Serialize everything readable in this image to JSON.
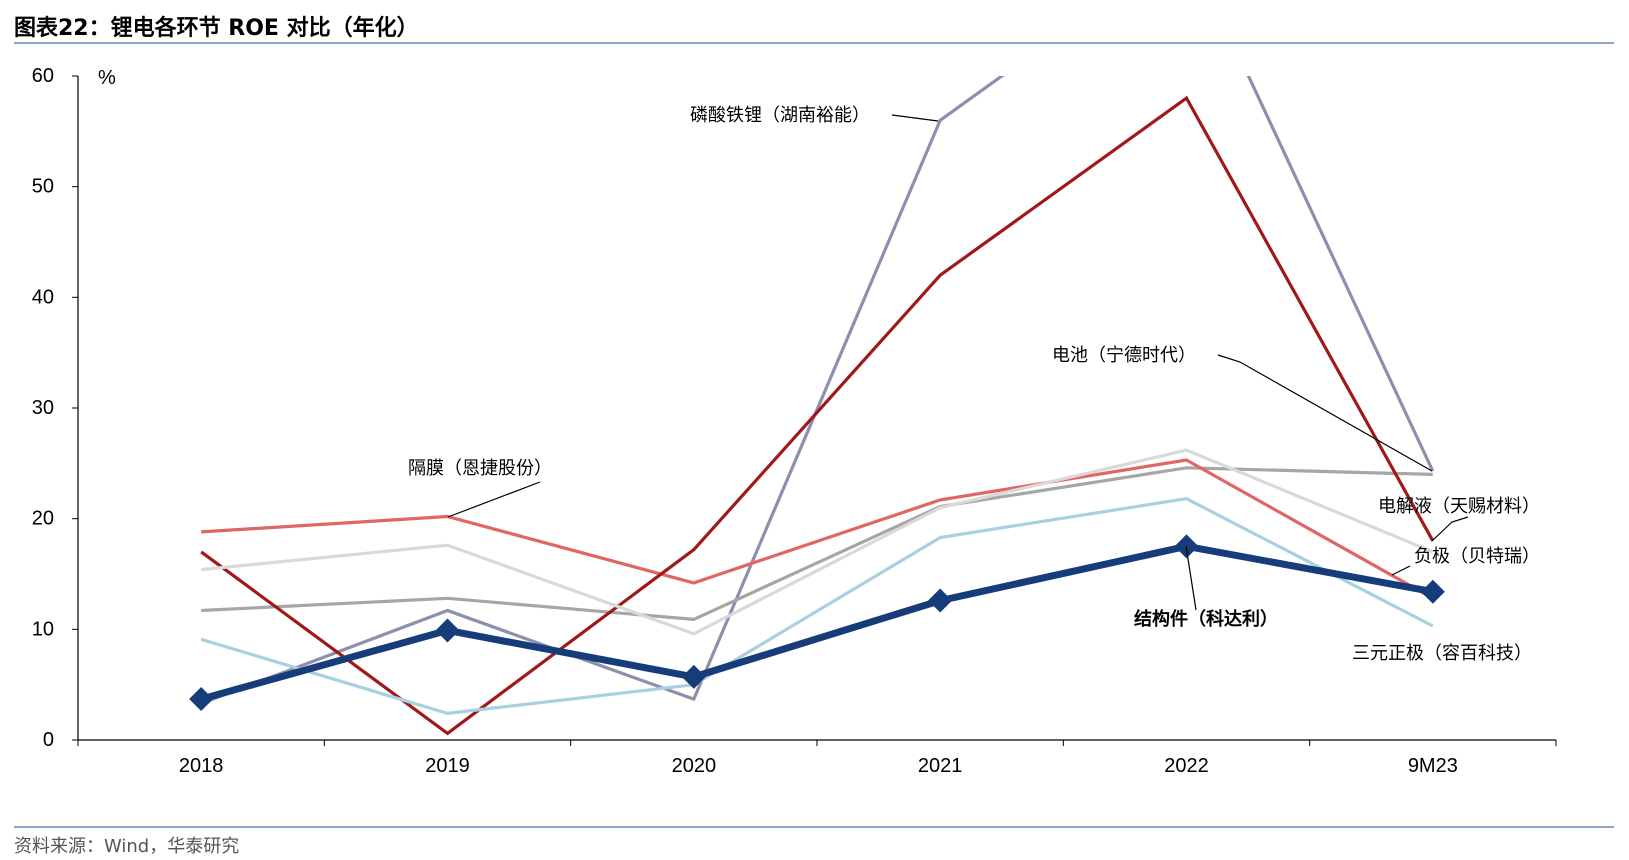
{
  "title": "图表22：锂电各环节 ROE 对比（年化）",
  "source": "资料来源：Wind，华泰研究",
  "chart_data": {
    "type": "line",
    "title": "图表22：锂电各环节 ROE 对比（年化）",
    "xlabel": "",
    "ylabel": "%",
    "ylim": [
      0,
      60
    ],
    "yticks": [
      0,
      10,
      20,
      30,
      40,
      50,
      60
    ],
    "categories": [
      "2018",
      "2019",
      "2020",
      "2021",
      "2022",
      "9M23"
    ],
    "grid": false,
    "legend": "inline callout labels",
    "series": [
      {
        "name": "磷酸铁锂（湖南裕能）",
        "color": "#8c8fad",
        "values": [
          3.3,
          11.7,
          3.7,
          56.0,
          72.0,
          24.3
        ]
      },
      {
        "name": "电池（宁德时代）",
        "color": "#a6a6a6",
        "values": [
          11.7,
          12.8,
          10.9,
          21.1,
          24.6,
          24.0
        ]
      },
      {
        "name": "隔膜（恩捷股份）",
        "color": "#e06666",
        "values": [
          18.8,
          20.2,
          14.2,
          21.7,
          25.3,
          12.8
        ]
      },
      {
        "name": "电解液（天赐材料）",
        "color": "#a01818",
        "values": [
          17.0,
          0.6,
          17.2,
          42.0,
          58.0,
          18.0
        ]
      },
      {
        "name": "负极（贝特瑞）",
        "color": "#d9d9d9",
        "values": [
          15.4,
          17.6,
          9.6,
          21.0,
          26.2,
          17.0
        ]
      },
      {
        "name": "三元正极（容百科技）",
        "color": "#a9d0e0",
        "values": [
          9.1,
          2.4,
          5.0,
          18.3,
          21.8,
          10.3
        ]
      },
      {
        "name": "结构件（科达利）",
        "color": "#163d7a",
        "values": [
          3.7,
          9.9,
          5.7,
          12.6,
          17.5,
          13.4
        ]
      }
    ],
    "annotations": [
      {
        "text": "磷酸铁锂（湖南裕能）",
        "series": "磷酸铁锂（湖南裕能）"
      },
      {
        "text": "电池（宁德时代）",
        "series": "电池（宁德时代）"
      },
      {
        "text": "隔膜（恩捷股份）",
        "series": "隔膜（恩捷股份）"
      },
      {
        "text": "电解液（天赐材料）",
        "series": "电解液（天赐材料）"
      },
      {
        "text": "负极（贝特瑞）",
        "series": "负极（贝特瑞）"
      },
      {
        "text": "结构件（科达利）",
        "series": "结构件（科达利）"
      },
      {
        "text": "三元正极（容百科技）",
        "series": "三元正极（容百科技）"
      }
    ]
  }
}
